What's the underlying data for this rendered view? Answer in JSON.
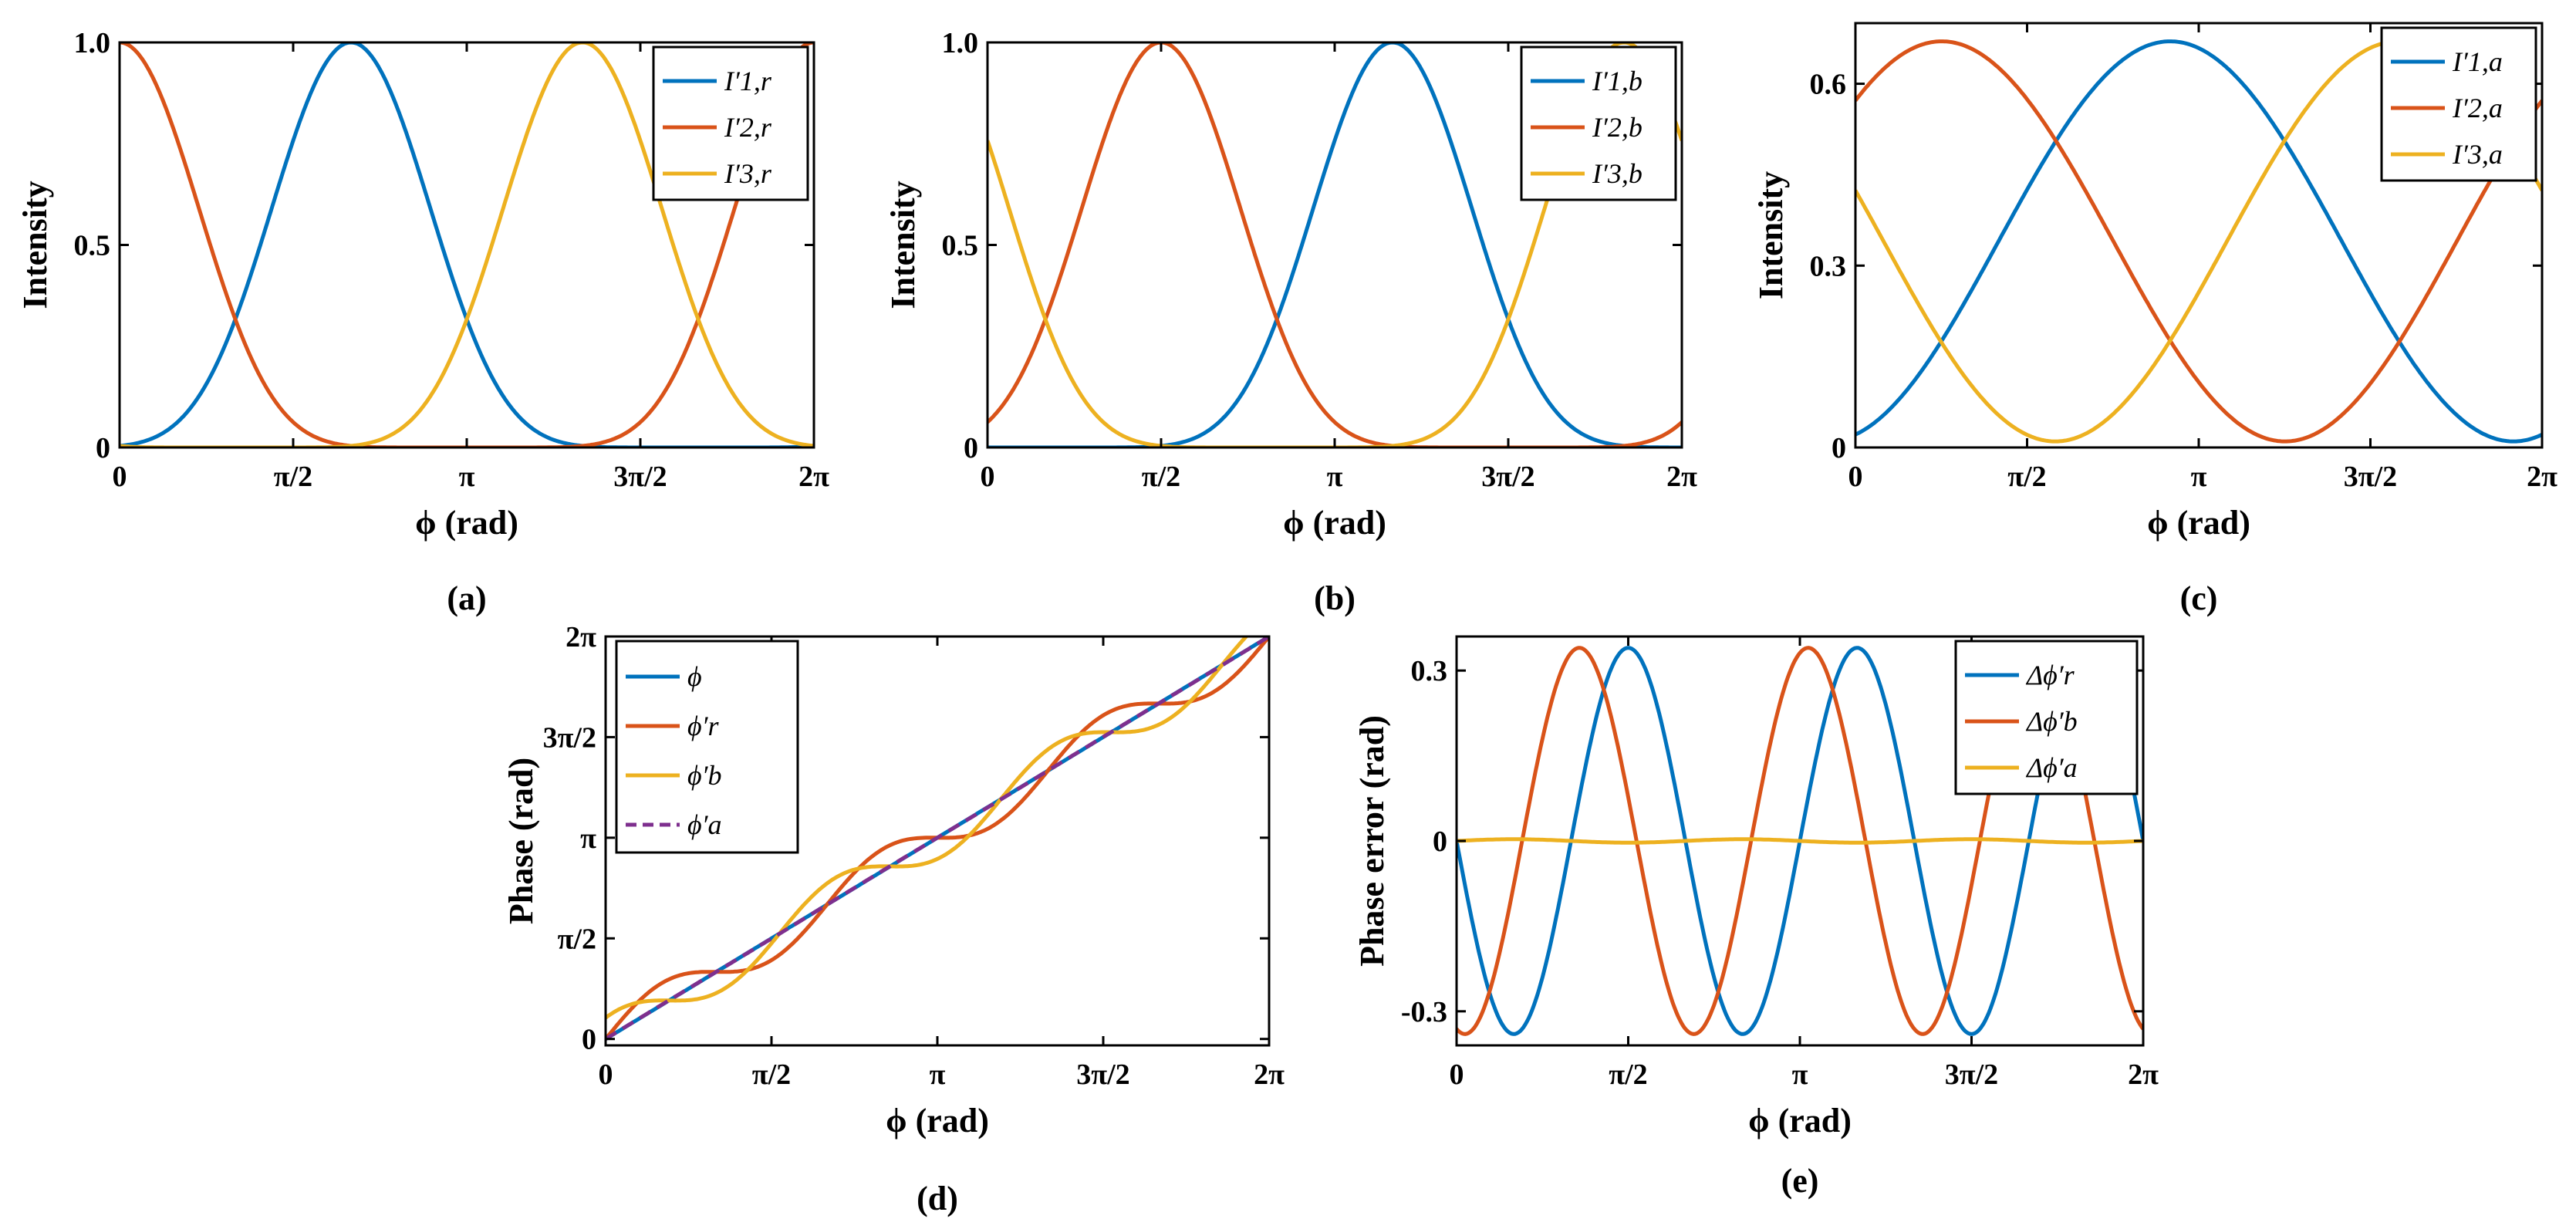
{
  "colors": {
    "blue": "#0072BD",
    "orange": "#D95319",
    "yellow": "#EDB120",
    "purple": "#7E2F8E"
  },
  "chart_data": [
    {
      "type": "line",
      "panel_label": "(a)",
      "xlabel": "ϕ (rad)",
      "ylabel": "Intensity",
      "xlim": [
        0,
        6.2832
      ],
      "ylim": [
        0,
        1.0
      ],
      "xticks": [
        0,
        1.5708,
        3.1416,
        4.7124,
        6.2832
      ],
      "xtick_labels": [
        "0",
        "π/2",
        "π",
        "3π/2",
        "2π"
      ],
      "yticks": [
        0,
        0.5,
        1.0
      ],
      "ytick_labels": [
        "0",
        "0.5",
        "1.0"
      ],
      "legend_position": "top-right",
      "series": [
        {
          "name": "I′1,r",
          "color": "#0072BD",
          "func": "cos2pow",
          "amp": 1.0,
          "offset": 0,
          "phase": 2.0944
        },
        {
          "name": "I′2,r",
          "color": "#D95319",
          "func": "cos2pow",
          "amp": 1.0,
          "offset": 0,
          "phase": 0.0
        },
        {
          "name": "I′3,r",
          "color": "#EDB120",
          "func": "cos2pow",
          "amp": 1.0,
          "offset": 0,
          "phase": 4.1888
        }
      ]
    },
    {
      "type": "line",
      "panel_label": "(b)",
      "xlabel": "ϕ (rad)",
      "ylabel": "Intensity",
      "xlim": [
        0,
        6.2832
      ],
      "ylim": [
        0,
        1.0
      ],
      "xticks": [
        0,
        1.5708,
        3.1416,
        4.7124,
        6.2832
      ],
      "xtick_labels": [
        "0",
        "π/2",
        "π",
        "3π/2",
        "2π"
      ],
      "yticks": [
        0,
        0.5,
        1.0
      ],
      "ytick_labels": [
        "0",
        "0.5",
        "1.0"
      ],
      "legend_position": "top-right",
      "series": [
        {
          "name": "I′1,b",
          "color": "#0072BD",
          "func": "cos2pow",
          "amp": 1.0,
          "offset": 0,
          "phase": 3.6652
        },
        {
          "name": "I′2,b",
          "color": "#D95319",
          "func": "cos2pow",
          "amp": 1.0,
          "offset": 0,
          "phase": 1.5708
        },
        {
          "name": "I′3,b",
          "color": "#EDB120",
          "func": "cos2pow",
          "amp": 1.0,
          "offset": 0,
          "phase": 5.7596
        }
      ]
    },
    {
      "type": "line",
      "panel_label": "(c)",
      "xlabel": "ϕ (rad)",
      "ylabel": "Intensity",
      "xlim": [
        0,
        6.2832
      ],
      "ylim": [
        0,
        0.7
      ],
      "xticks": [
        0,
        1.5708,
        3.1416,
        4.7124,
        6.2832
      ],
      "xtick_labels": [
        "0",
        "π/2",
        "π",
        "3π/2",
        "2π"
      ],
      "yticks": [
        0,
        0.3,
        0.6
      ],
      "ytick_labels": [
        "0",
        "0.3",
        "0.6"
      ],
      "legend_position": "top-right",
      "series": [
        {
          "name": "I′1,a",
          "color": "#0072BD",
          "func": "cos",
          "amp": 0.33,
          "offset": 0.34,
          "phase": 2.88
        },
        {
          "name": "I′2,a",
          "color": "#D95319",
          "func": "cos",
          "amp": 0.33,
          "offset": 0.34,
          "phase": 0.79
        },
        {
          "name": "I′3,a",
          "color": "#EDB120",
          "func": "cos",
          "amp": 0.33,
          "offset": 0.34,
          "phase": 4.97
        }
      ]
    },
    {
      "type": "line",
      "panel_label": "(d)",
      "xlabel": "ϕ (rad)",
      "ylabel": "Phase (rad)",
      "xlim": [
        0,
        6.2832
      ],
      "ylim": [
        -0.1,
        6.2832
      ],
      "xticks": [
        0,
        1.5708,
        3.1416,
        4.7124,
        6.2832
      ],
      "xtick_labels": [
        "0",
        "π/2",
        "π",
        "3π/2",
        "2π"
      ],
      "yticks": [
        0,
        1.5708,
        3.1416,
        4.7124,
        6.2832
      ],
      "ytick_labels": [
        "0",
        "π/2",
        "π",
        "3π/2",
        "2π"
      ],
      "legend_position": "top-left",
      "series": [
        {
          "name": "ϕ",
          "color": "#0072BD",
          "func": "phase",
          "amp": 0,
          "phase": 0,
          "dashed": false
        },
        {
          "name": "ϕ′r",
          "color": "#D95319",
          "func": "phase",
          "amp": 0.34,
          "phase": 0.0,
          "dashed": false
        },
        {
          "name": "ϕ′b",
          "color": "#EDB120",
          "func": "phase",
          "amp": -0.34,
          "phase": 0.6,
          "dashed": false
        },
        {
          "name": "ϕ′a",
          "color": "#7E2F8E",
          "func": "phase",
          "amp": 0.003,
          "phase": 0.0,
          "dashed": true
        }
      ]
    },
    {
      "type": "line",
      "panel_label": "(e)",
      "xlabel": "ϕ (rad)",
      "ylabel": "Phase error (rad)",
      "xlim": [
        0,
        6.2832
      ],
      "ylim": [
        -0.36,
        0.36
      ],
      "xticks": [
        0,
        1.5708,
        3.1416,
        4.7124,
        6.2832
      ],
      "xtick_labels": [
        "0",
        "π/2",
        "π",
        "3π/2",
        "2π"
      ],
      "yticks": [
        -0.3,
        0,
        0.3
      ],
      "ytick_labels": [
        "-0.3",
        "0",
        "0.3"
      ],
      "legend_position": "top-right",
      "series": [
        {
          "name": "Δϕ′r",
          "color": "#0072BD",
          "func": "sin3",
          "amp": -0.34,
          "phase": 0.0
        },
        {
          "name": "Δϕ′b",
          "color": "#D95319",
          "func": "sin3",
          "amp": 0.34,
          "phase": 0.6
        },
        {
          "name": "Δϕ′a",
          "color": "#EDB120",
          "func": "sin3",
          "amp": 0.003,
          "phase": 0.0
        }
      ]
    }
  ]
}
